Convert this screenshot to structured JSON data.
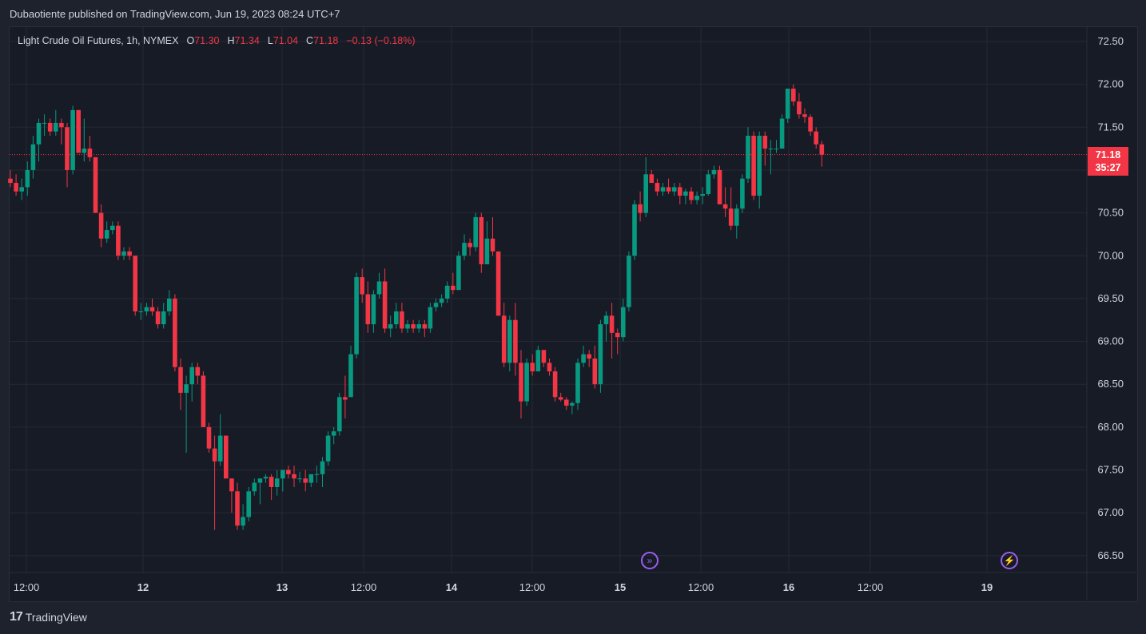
{
  "header": {
    "publisher_line": "Dubaotiente published on TradingView.com, Jun 19, 2023 08:24 UTC+7"
  },
  "legend": {
    "symbol": "Light Crude Oil Futures, 1h, NYMEX",
    "o_label": "O",
    "o_value": "71.30",
    "h_label": "H",
    "h_value": "71.34",
    "l_label": "L",
    "l_value": "71.04",
    "c_label": "C",
    "c_value": "71.18",
    "change": "−0.13 (−0.18%)"
  },
  "price_tag": {
    "price": "71.18",
    "countdown": "35:27"
  },
  "footer": {
    "logo_text": "TradingView"
  },
  "icons": [
    "replay-forward-icon",
    "lightning-icon"
  ],
  "colors": {
    "up": "#089981",
    "down": "#f23645",
    "background": "#171b26",
    "grid": "#252934",
    "text": "#d1d4dc",
    "accent": "#9c5df0"
  },
  "chart_data": {
    "type": "candlestick",
    "y_ticks": [
      "72.50",
      "72.00",
      "71.50",
      "71.00",
      "70.50",
      "70.00",
      "69.50",
      "69.00",
      "68.50",
      "68.00",
      "67.50",
      "67.00",
      "66.50"
    ],
    "ylim": [
      66.3,
      72.9
    ],
    "x_ticks": [
      "12:00",
      "12",
      "13",
      "12:00",
      "14",
      "12:00",
      "15",
      "12:00",
      "16",
      "12:00",
      "19"
    ],
    "last_price": 71.18,
    "candles": [
      [
        70.9,
        71.0,
        70.8,
        70.85
      ],
      [
        70.85,
        70.95,
        70.7,
        70.75
      ],
      [
        70.75,
        70.9,
        70.65,
        70.8
      ],
      [
        70.8,
        71.1,
        70.7,
        71.0
      ],
      [
        71.0,
        71.4,
        70.9,
        71.3
      ],
      [
        71.3,
        71.6,
        71.1,
        71.55
      ],
      [
        71.55,
        71.65,
        71.4,
        71.55
      ],
      [
        71.55,
        71.6,
        71.4,
        71.45
      ],
      [
        71.45,
        71.7,
        71.4,
        71.55
      ],
      [
        71.55,
        71.6,
        71.3,
        71.5
      ],
      [
        71.5,
        71.55,
        70.8,
        71.0
      ],
      [
        71.0,
        71.75,
        70.95,
        71.7
      ],
      [
        71.7,
        71.7,
        71.2,
        71.2
      ],
      [
        71.2,
        71.6,
        71.1,
        71.25
      ],
      [
        71.25,
        71.4,
        71.1,
        71.15
      ],
      [
        71.15,
        71.15,
        70.5,
        70.5
      ],
      [
        70.5,
        70.6,
        70.1,
        70.2
      ],
      [
        70.2,
        70.4,
        70.15,
        70.3
      ],
      [
        70.3,
        70.4,
        70.25,
        70.35
      ],
      [
        70.35,
        70.4,
        69.95,
        70.0
      ],
      [
        70.0,
        70.1,
        69.95,
        70.05
      ],
      [
        70.05,
        70.1,
        69.95,
        70.0
      ],
      [
        70.0,
        70.0,
        69.3,
        69.35
      ],
      [
        69.35,
        69.45,
        69.25,
        69.35
      ],
      [
        69.35,
        69.45,
        69.3,
        69.4
      ],
      [
        69.4,
        69.5,
        69.3,
        69.35
      ],
      [
        69.35,
        69.4,
        69.15,
        69.2
      ],
      [
        69.2,
        69.45,
        69.15,
        69.35
      ],
      [
        69.35,
        69.6,
        69.3,
        69.5
      ],
      [
        69.5,
        69.55,
        68.65,
        68.7
      ],
      [
        68.7,
        68.8,
        68.2,
        68.4
      ],
      [
        68.4,
        68.6,
        67.7,
        68.5
      ],
      [
        68.5,
        68.75,
        68.3,
        68.7
      ],
      [
        68.7,
        68.75,
        68.5,
        68.6
      ],
      [
        68.6,
        68.65,
        68.0,
        68.0
      ],
      [
        68.0,
        68.05,
        67.7,
        67.75
      ],
      [
        67.75,
        67.9,
        66.8,
        67.6
      ],
      [
        67.6,
        68.15,
        67.55,
        67.9
      ],
      [
        67.9,
        67.9,
        67.4,
        67.4
      ],
      [
        67.4,
        67.4,
        67.0,
        67.25
      ],
      [
        67.25,
        67.35,
        66.8,
        66.85
      ],
      [
        66.85,
        67.1,
        66.8,
        66.95
      ],
      [
        66.95,
        67.3,
        66.9,
        67.25
      ],
      [
        67.25,
        67.4,
        67.2,
        67.35
      ],
      [
        67.35,
        67.4,
        67.1,
        67.4
      ],
      [
        67.4,
        67.45,
        67.35,
        67.42
      ],
      [
        67.42,
        67.45,
        67.15,
        67.3
      ],
      [
        67.3,
        67.5,
        67.2,
        67.4
      ],
      [
        67.4,
        67.5,
        67.25,
        67.5
      ],
      [
        67.5,
        67.55,
        67.4,
        67.45
      ],
      [
        67.45,
        67.55,
        67.3,
        67.4
      ],
      [
        67.4,
        67.48,
        67.35,
        67.4
      ],
      [
        67.4,
        67.5,
        67.25,
        67.35
      ],
      [
        67.35,
        67.45,
        67.3,
        67.45
      ],
      [
        67.45,
        67.55,
        67.35,
        67.45
      ],
      [
        67.45,
        67.65,
        67.3,
        67.6
      ],
      [
        67.6,
        67.95,
        67.55,
        67.9
      ],
      [
        67.9,
        68.0,
        67.8,
        67.95
      ],
      [
        67.95,
        68.4,
        67.9,
        68.35
      ],
      [
        68.35,
        68.6,
        68.1,
        68.32
      ],
      [
        68.35,
        68.95,
        68.35,
        68.85
      ],
      [
        68.85,
        69.8,
        68.8,
        69.75
      ],
      [
        69.75,
        69.85,
        69.45,
        69.55
      ],
      [
        69.55,
        69.7,
        69.1,
        69.2
      ],
      [
        69.2,
        69.6,
        69.1,
        69.55
      ],
      [
        69.55,
        69.8,
        69.5,
        69.7
      ],
      [
        69.7,
        69.85,
        69.1,
        69.15
      ],
      [
        69.15,
        69.3,
        69.05,
        69.2
      ],
      [
        69.2,
        69.45,
        69.15,
        69.35
      ],
      [
        69.35,
        69.45,
        69.1,
        69.15
      ],
      [
        69.15,
        69.25,
        69.1,
        69.2
      ],
      [
        69.2,
        69.25,
        69.1,
        69.15
      ],
      [
        69.15,
        69.25,
        69.1,
        69.2
      ],
      [
        69.2,
        69.25,
        69.05,
        69.15
      ],
      [
        69.15,
        69.45,
        69.1,
        69.4
      ],
      [
        69.4,
        69.5,
        69.35,
        69.45
      ],
      [
        69.45,
        69.55,
        69.4,
        69.5
      ],
      [
        69.5,
        69.7,
        69.45,
        69.65
      ],
      [
        69.65,
        69.8,
        69.55,
        69.6
      ],
      [
        69.6,
        70.05,
        69.6,
        70.0
      ],
      [
        70.0,
        70.25,
        69.95,
        70.15
      ],
      [
        70.15,
        70.2,
        70.0,
        70.1
      ],
      [
        70.1,
        70.5,
        70.05,
        70.45
      ],
      [
        70.45,
        70.5,
        69.8,
        69.9
      ],
      [
        69.9,
        70.4,
        69.9,
        70.2
      ],
      [
        70.2,
        70.45,
        70.0,
        70.05
      ],
      [
        70.05,
        70.05,
        69.3,
        69.3
      ],
      [
        69.3,
        69.45,
        68.7,
        68.75
      ],
      [
        68.75,
        69.3,
        68.65,
        69.25
      ],
      [
        69.25,
        69.45,
        68.6,
        68.75
      ],
      [
        68.75,
        68.9,
        68.1,
        68.3
      ],
      [
        68.3,
        68.8,
        68.25,
        68.75
      ],
      [
        68.75,
        68.85,
        68.6,
        68.65
      ],
      [
        68.65,
        68.95,
        68.65,
        68.9
      ],
      [
        68.9,
        68.9,
        68.7,
        68.75
      ],
      [
        68.75,
        68.8,
        68.6,
        68.65
      ],
      [
        68.65,
        68.7,
        68.3,
        68.35
      ],
      [
        68.35,
        68.4,
        68.3,
        68.32
      ],
      [
        68.32,
        68.35,
        68.2,
        68.25
      ],
      [
        68.25,
        68.3,
        68.15,
        68.28
      ],
      [
        68.28,
        68.8,
        68.2,
        68.75
      ],
      [
        68.75,
        68.95,
        68.7,
        68.85
      ],
      [
        68.85,
        68.9,
        68.7,
        68.8
      ],
      [
        68.8,
        68.95,
        68.45,
        68.5
      ],
      [
        68.5,
        69.25,
        68.4,
        69.2
      ],
      [
        69.2,
        69.35,
        69.0,
        69.3
      ],
      [
        69.3,
        69.45,
        68.8,
        69.1
      ],
      [
        69.1,
        69.15,
        68.85,
        69.05
      ],
      [
        69.05,
        69.5,
        69.0,
        69.4
      ],
      [
        69.4,
        70.05,
        69.35,
        70.0
      ],
      [
        70.0,
        70.65,
        69.95,
        70.6
      ],
      [
        70.6,
        70.75,
        70.4,
        70.5
      ],
      [
        70.5,
        71.15,
        70.45,
        70.95
      ],
      [
        70.95,
        71.0,
        70.85,
        70.85
      ],
      [
        70.85,
        70.9,
        70.7,
        70.75
      ],
      [
        70.75,
        70.85,
        70.7,
        70.8
      ],
      [
        70.8,
        70.9,
        70.72,
        70.75
      ],
      [
        70.75,
        70.85,
        70.7,
        70.8
      ],
      [
        70.8,
        70.85,
        70.6,
        70.7
      ],
      [
        70.7,
        70.78,
        70.6,
        70.75
      ],
      [
        70.75,
        70.8,
        70.6,
        70.65
      ],
      [
        70.65,
        70.75,
        70.6,
        70.7
      ],
      [
        70.7,
        70.8,
        70.6,
        70.72
      ],
      [
        70.72,
        71.0,
        70.7,
        70.95
      ],
      [
        70.95,
        71.05,
        70.9,
        71.0
      ],
      [
        71.0,
        71.05,
        70.6,
        70.6
      ],
      [
        70.6,
        70.8,
        70.45,
        70.55
      ],
      [
        70.55,
        70.8,
        70.3,
        70.35
      ],
      [
        70.35,
        70.6,
        70.2,
        70.55
      ],
      [
        70.55,
        70.95,
        70.5,
        70.9
      ],
      [
        70.9,
        71.5,
        70.85,
        71.4
      ],
      [
        71.4,
        71.45,
        70.65,
        70.7
      ],
      [
        70.7,
        71.45,
        70.55,
        71.4
      ],
      [
        71.4,
        71.45,
        71.05,
        71.25
      ],
      [
        71.25,
        71.35,
        70.95,
        71.25
      ],
      [
        71.25,
        71.35,
        71.2,
        71.25
      ],
      [
        71.25,
        71.65,
        71.25,
        71.6
      ],
      [
        71.6,
        71.95,
        71.55,
        71.95
      ],
      [
        71.95,
        72.0,
        71.75,
        71.8
      ],
      [
        71.8,
        71.9,
        71.6,
        71.65
      ],
      [
        71.65,
        71.72,
        71.55,
        71.62
      ],
      [
        71.62,
        71.65,
        71.4,
        71.45
      ],
      [
        71.45,
        71.5,
        71.25,
        71.3
      ],
      [
        71.3,
        71.34,
        71.04,
        71.18
      ]
    ]
  }
}
